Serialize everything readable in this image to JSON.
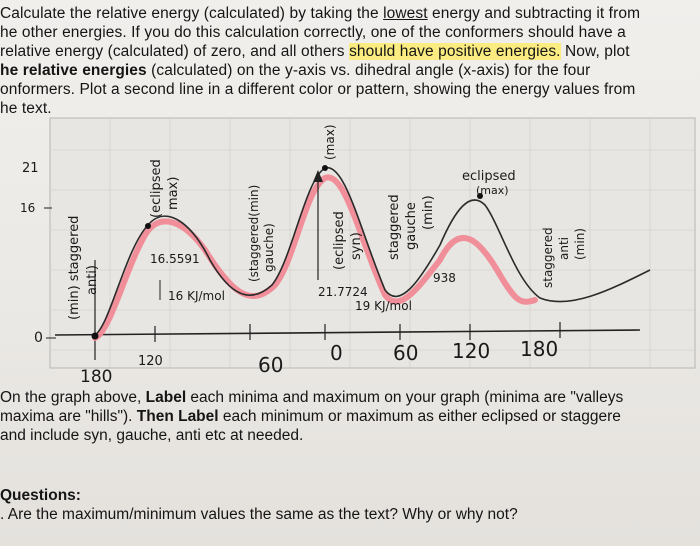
{
  "intro": {
    "l1_a": "Calculate the relative energy (calculated) by taking the ",
    "l1_b": "lowest",
    "l1_c": " energy and subtracting it from",
    "l2": "he other energies. If you do this calculation correctly, one of the conformers should have a",
    "l3_a": "relative energy (calculated) of zero, and all others ",
    "l3_b": "should have positive energies.",
    "l3_c": " Now, plot",
    "l4_a": "he relative energies",
    "l4_b": " (calculated) on the y-axis vs. dihedral angle (x-axis) for the four",
    "l5": "onformers. Plot a second line in a different color or pattern, showing the energy values from",
    "l6": "he text."
  },
  "graph": {
    "y_ticks": [
      "21",
      "16",
      "0"
    ],
    "x_ticks": [
      "180",
      "120",
      "60",
      "0",
      "60",
      "120",
      "180"
    ],
    "annotations": {
      "min_staggered_anti_1": "(min) staggered",
      "min_staggered_anti_2": "anti)",
      "eclipsed_max_1": "(eclipsed",
      "eclipsed_max_2": "max)",
      "val_16_5": "16.5591",
      "val_16_kj": "16 KJ/mol",
      "staggered_min_1": "(staggered(min)",
      "staggered_min_2": "gauche)",
      "max_top": "(max)",
      "eclipsed_syn_1": "(eclipsed",
      "eclipsed_syn_2": "syn)",
      "val_21_7": "21.7724",
      "val_19": "19 KJ/mol",
      "staggered_gauche_1": "staggered",
      "staggered_gauche_2": "gauche",
      "staggered_gauche_3": "(min)",
      "val_938": "938",
      "eclipsed_max_right_1": "eclipsed",
      "eclipsed_max_right_2": "(max)",
      "staggered_anti_right_1": "staggered",
      "staggered_anti_right_2": "anti",
      "staggered_anti_right_3": "(min)"
    },
    "colors": {
      "calculated_line": "#2b2b2b",
      "text_line": "#f08a96"
    }
  },
  "after_graph": {
    "l1_a": "On the graph above, ",
    "l1_b": "Label",
    "l1_c": " each minima and maximum on your graph (minima are \"valleys",
    "l2_a": "maxima are \"hills\"). ",
    "l2_b": "Then Label",
    "l2_c": " each minimum or maximum as either eclipsed or staggere",
    "l3": "and include syn, gauche, anti etc at needed."
  },
  "questions": {
    "heading": "Questions:",
    "q1": ". Are the maximum/minimum values the same as the text? Why or why not?"
  }
}
